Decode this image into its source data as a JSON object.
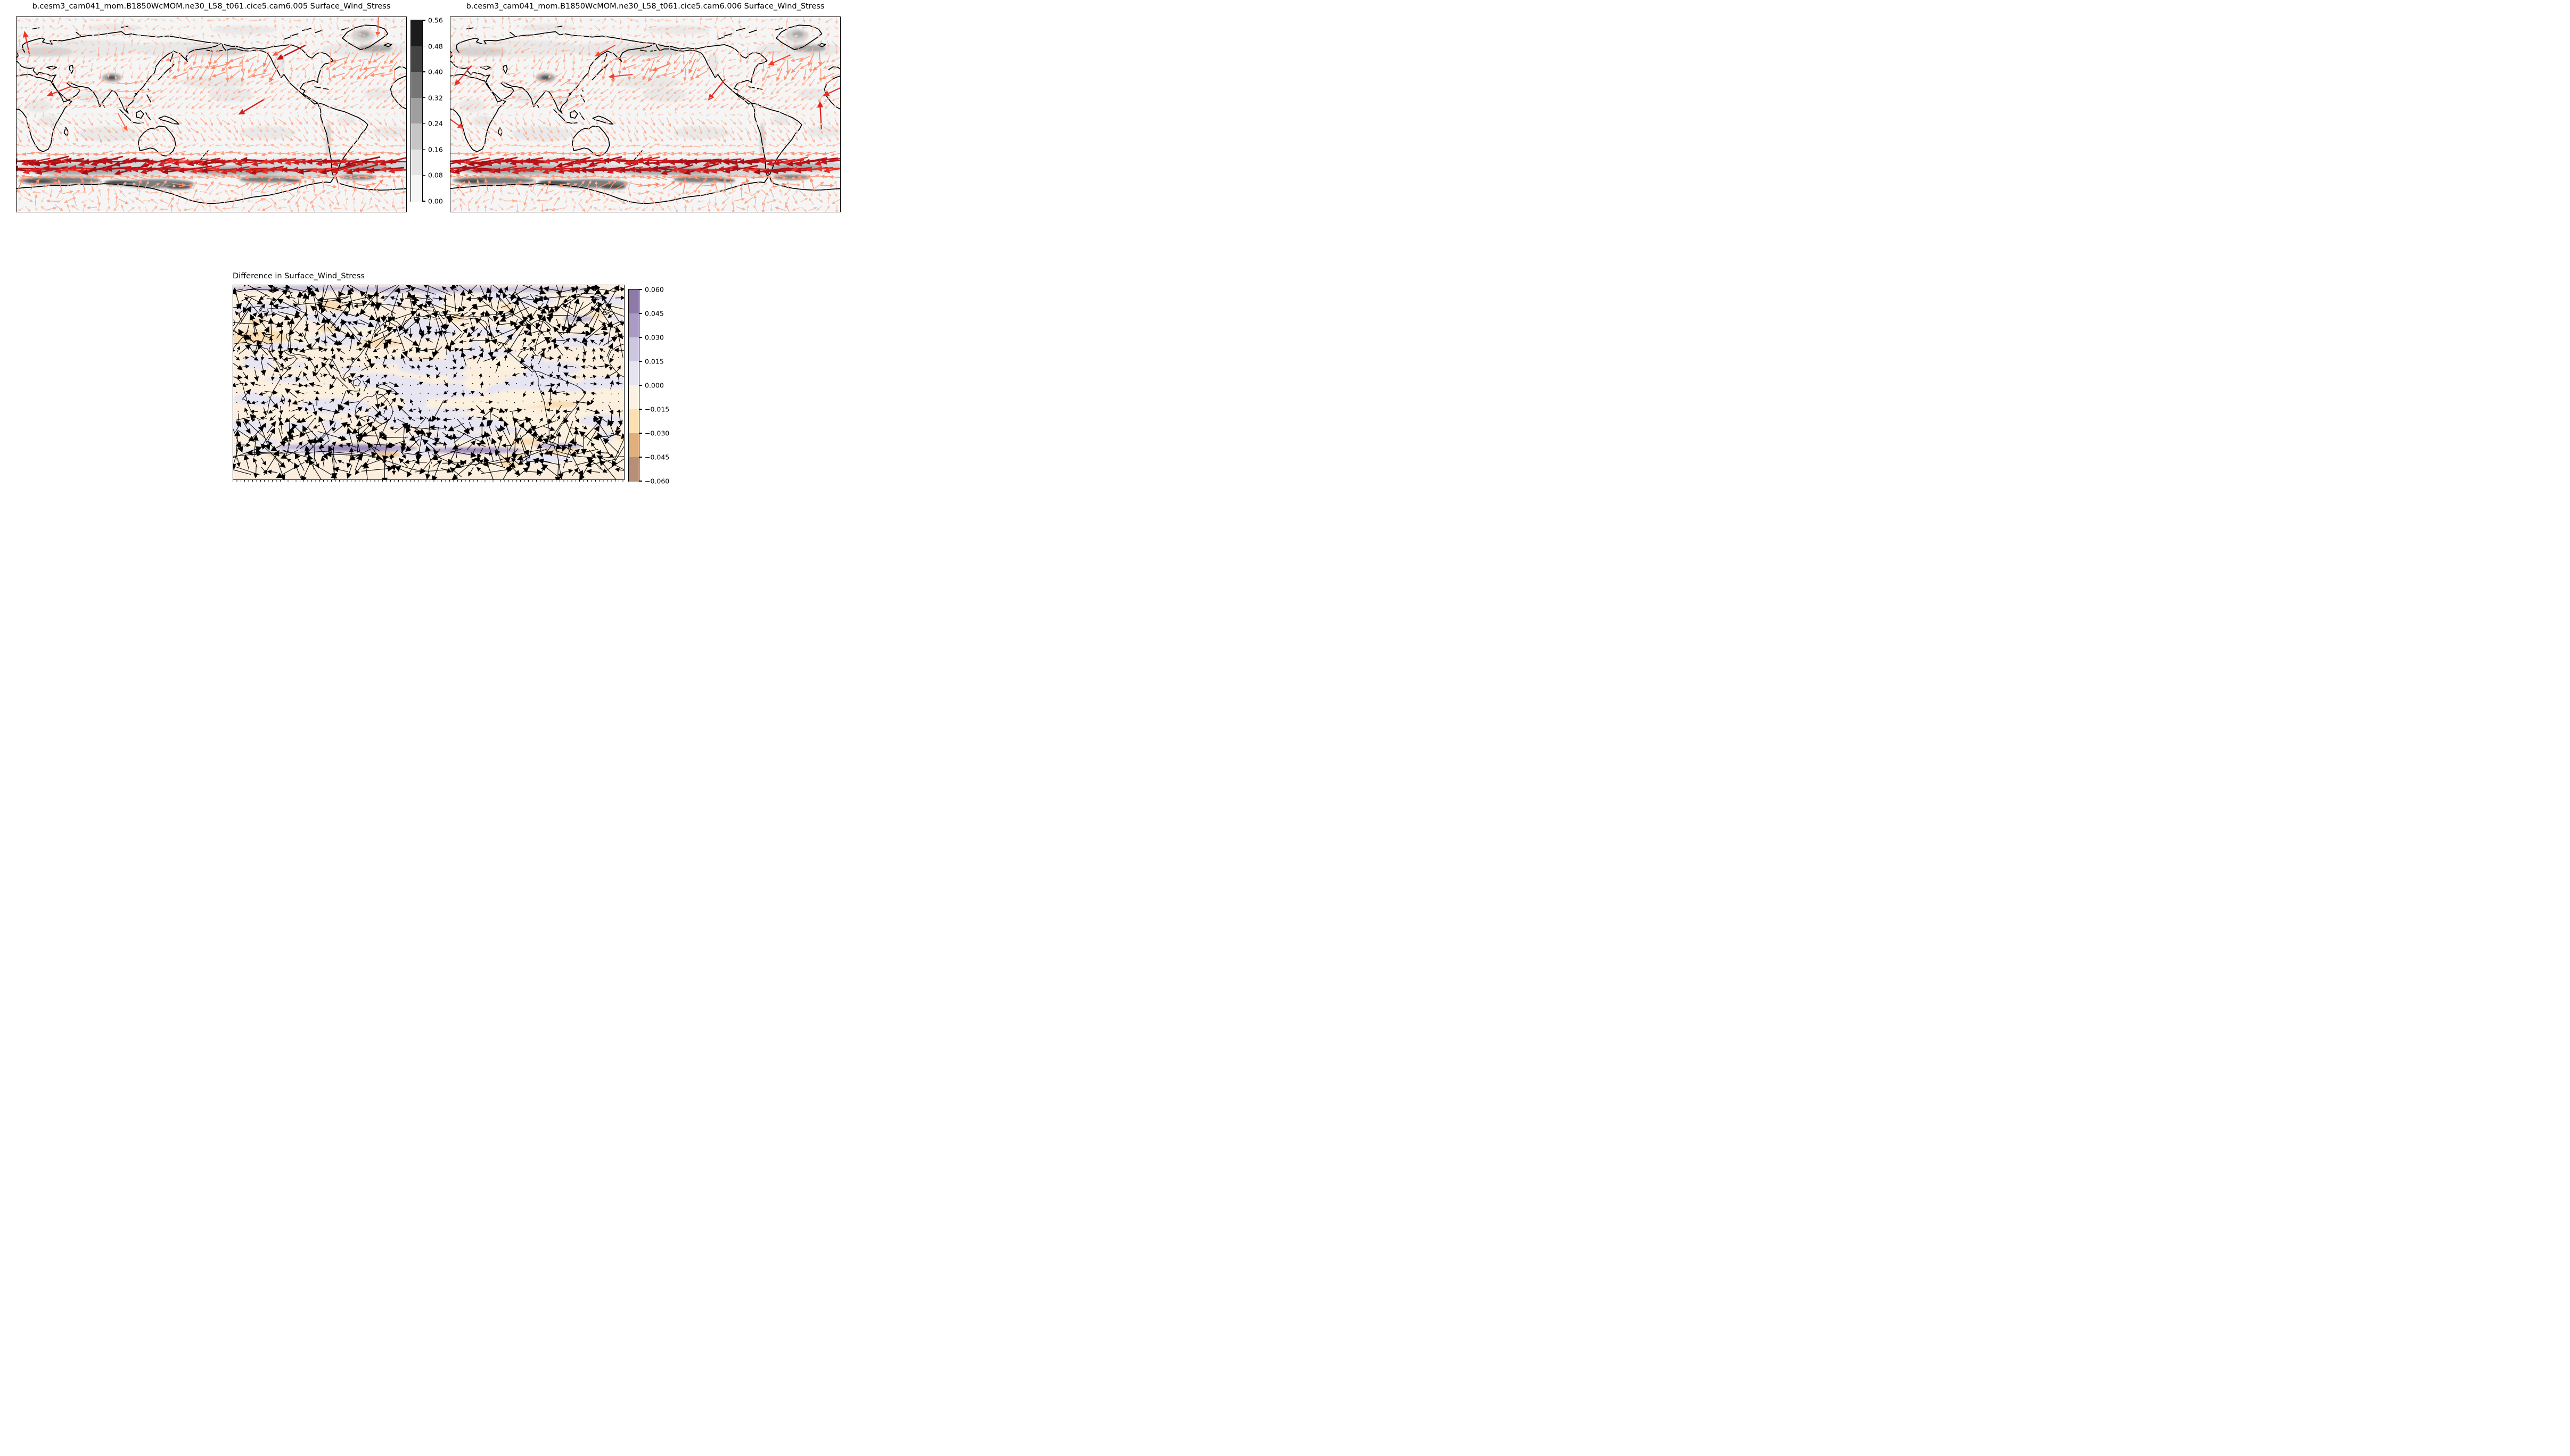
{
  "panels": [
    {
      "title": "b.cesm3_cam041_mom.B1850WcMOM.ne30_L58_t061.cice5.cam6.005 Surface_Wind_Stress"
    },
    {
      "title": "b.cesm3_cam041_mom.B1850WcMOM.ne30_L58_t061.cice5.cam6.006 Surface_Wind_Stress"
    },
    {
      "title": "Difference in Surface_Wind_Stress"
    }
  ],
  "chart_data": [
    {
      "type": "heatmap",
      "subtype": "global map (equirectangular, 0-360E, 90N-90S) with filled grayscale contours and quiver wind-stress vectors colored by magnitude (Reds)",
      "title": "b.cesm3_cam041_mom.B1850WcMOM.ne30_L58_t061.cice5.cam6.005 Surface_Wind_Stress",
      "x_range": [
        0,
        360
      ],
      "y_range": [
        -90,
        90
      ],
      "grid": false,
      "colorbar": {
        "orientation": "vertical",
        "position": "right of panel",
        "ticks": [
          0.56,
          0.48,
          0.4,
          0.32,
          0.24,
          0.16,
          0.08,
          0.0
        ],
        "tick_labels": [
          "0.56",
          "0.48",
          "0.40",
          "0.32",
          "0.24",
          "0.16",
          "0.08",
          "0.00"
        ],
        "band_colors_top_to_bottom": [
          "#1c1c1c",
          "#434343",
          "#767676",
          "#9f9f9f",
          "#c6c6c6",
          "#e3e3e3",
          "#f5f5f5"
        ]
      },
      "vectors": {
        "color_scale": "Reds by magnitude",
        "range": [
          0,
          0.56
        ],
        "pattern": "strong dark-red westward band 40-60S (max ~0.5), moderate salmon trade-wind vectors in tropics, weak near equator, moderate storm-track vectors in N Pacific / N Atlantic"
      },
      "shading_pattern": "light gray 0.08-0.16 bands in mid-latitude storm tracks and subtropical trades; dark 0.24-0.56 circumpolar band 45-65S near Antarctica; dark spots over Tibet and Greenland"
    },
    {
      "type": "heatmap",
      "subtype": "global map (equirectangular, 0-360E, 90N-90S) with filled grayscale contours and quiver wind-stress vectors colored by magnitude (Reds)",
      "title": "b.cesm3_cam041_mom.B1850WcMOM.ne30_L58_t061.cice5.cam6.006 Surface_Wind_Stress",
      "x_range": [
        0,
        360
      ],
      "y_range": [
        -90,
        90
      ],
      "grid": false,
      "colorbar": {
        "shared_with": "panel 1"
      },
      "vectors": {
        "color_scale": "Reds by magnitude",
        "range": [
          0,
          0.56
        ],
        "pattern": "same as panel 1 (different ensemble member, nearly identical field)"
      }
    },
    {
      "type": "heatmap",
      "subtype": "global difference map (equirectangular, 0-360E, 90N-90S) with filled PuOr-style contours and black quiver difference vectors",
      "title": "Difference in Surface_Wind_Stress",
      "x_range": [
        0,
        360
      ],
      "y_range": [
        -90,
        90
      ],
      "grid": false,
      "colorbar": {
        "orientation": "vertical",
        "position": "right of panel",
        "ticks": [
          0.06,
          0.045,
          0.03,
          0.015,
          0.0,
          -0.015,
          -0.03,
          -0.045,
          -0.06
        ],
        "tick_labels": [
          "0.060",
          "0.045",
          "0.030",
          "0.015",
          "0.000",
          "−0.015",
          "−0.030",
          "−0.045",
          "−0.060"
        ],
        "band_colors_top_to_bottom": [
          "#8d7aa8",
          "#a99bc4",
          "#cdc6e0",
          "#e7e4f1",
          "#fdf2e2",
          "#fcdfb2",
          "#dfaf7e",
          "#b78f77"
        ]
      },
      "vectors": {
        "color": "#000000",
        "pattern": "small random-direction difference vectors; larger in mid/high latitudes, tiny dots in tropical Pacific"
      },
      "shading_pattern": "mottled near-zero cream/lavender field; purple (+0.03 to +0.06) band hugging Antarctic coast with small orange (-0.03 to -0.045) patches; faint orange patches over Scandinavia, central Asia, N Pacific"
    }
  ]
}
